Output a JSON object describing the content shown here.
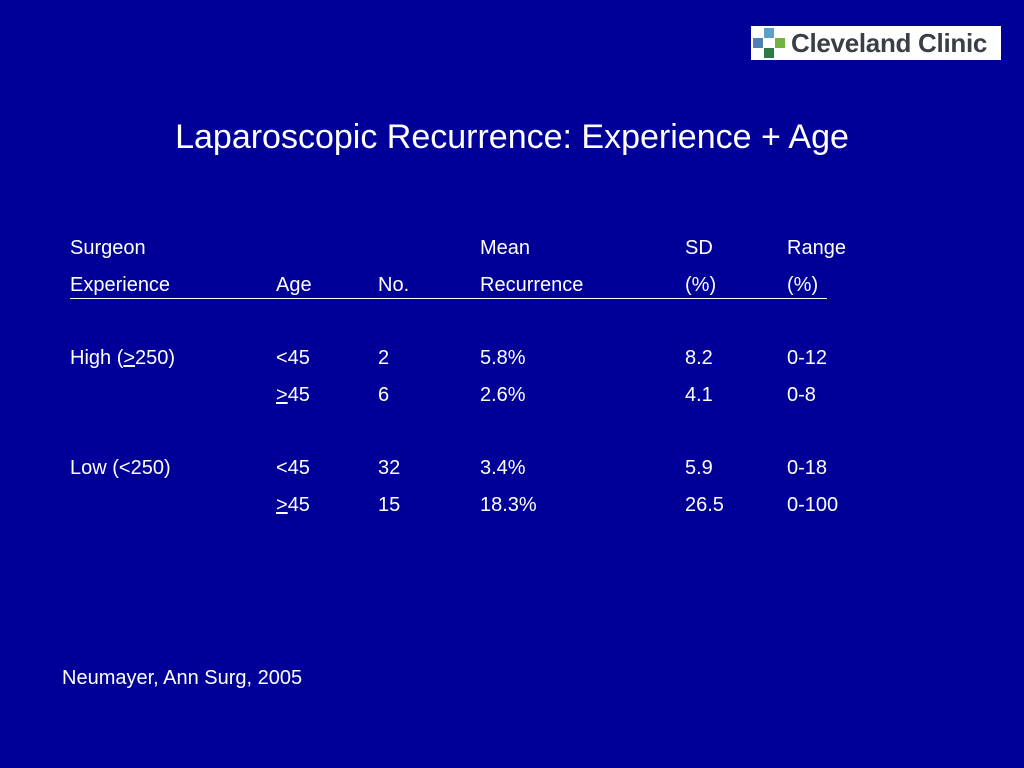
{
  "logo": {
    "text": "Cleveland Clinic",
    "colors": [
      "#5aa0c8",
      "#4e7fb5",
      "#71b13f",
      "#2e7a47"
    ]
  },
  "title": "Laparoscopic Recurrence: Experience + Age",
  "table": {
    "header_line1": [
      "Surgeon",
      "",
      "",
      "Mean",
      "SD",
      "Range"
    ],
    "header_line2": [
      "Experience",
      "Age",
      "No.",
      "Recurrence",
      "(%)",
      "(%)"
    ],
    "groups": [
      {
        "rows": [
          {
            "experience_prefix": "High (",
            "experience_symbol": ">",
            "experience_suffix": "250)",
            "age_symbol": "",
            "age": "<45",
            "no": "2",
            "mean": "5.8%",
            "sd": "8.2",
            "range": "0-12"
          },
          {
            "experience_prefix": "",
            "experience_symbol": "",
            "experience_suffix": "",
            "age_symbol": ">",
            "age": "45",
            "no": "6",
            "mean": "2.6%",
            "sd": "4.1",
            "range": "0-8"
          }
        ]
      },
      {
        "rows": [
          {
            "experience_prefix": "Low (<250)",
            "experience_symbol": "",
            "experience_suffix": "",
            "age_symbol": "",
            "age": "<45",
            "no": "32",
            "mean": "3.4%",
            "sd": "5.9",
            "range": "0-18"
          },
          {
            "experience_prefix": "",
            "experience_symbol": "",
            "experience_suffix": "",
            "age_symbol": ">",
            "age": "45",
            "no": "15",
            "mean": "18.3%",
            "sd": "26.5",
            "range": "0-100"
          }
        ]
      }
    ]
  },
  "citation": "Neumayer, Ann Surg, 2005"
}
